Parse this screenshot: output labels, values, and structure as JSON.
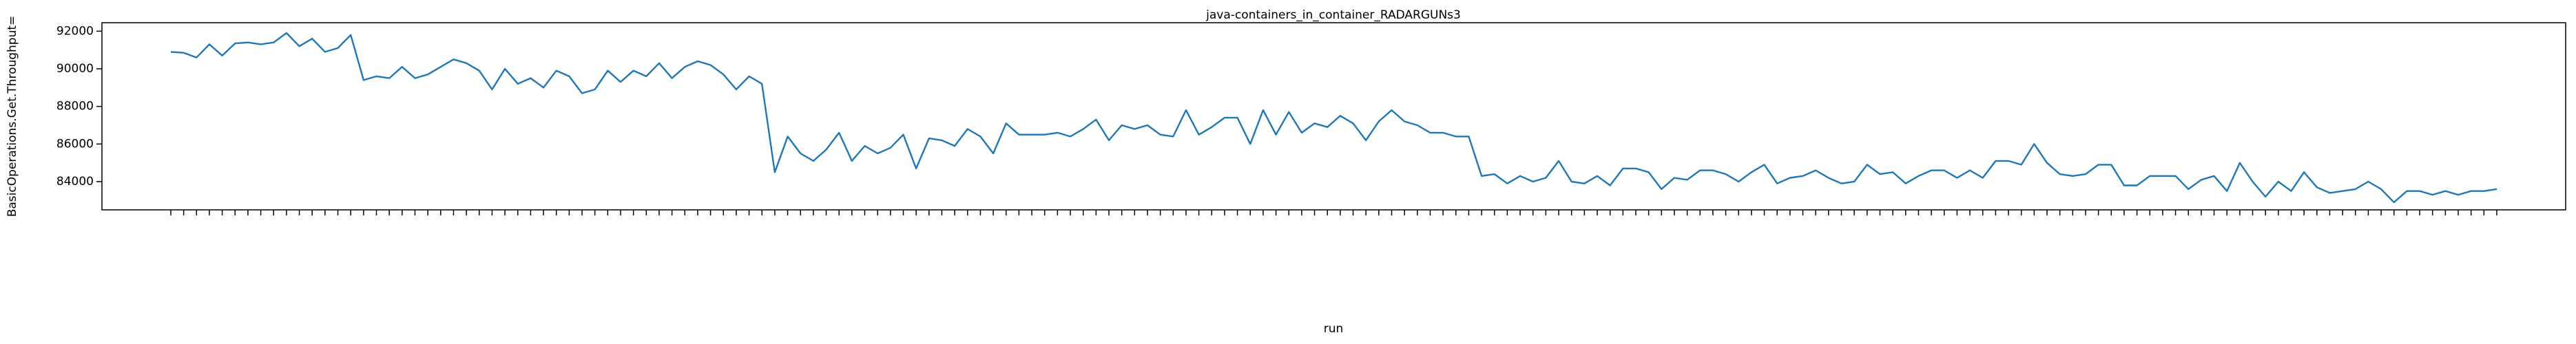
{
  "chart_data": {
    "type": "line",
    "title": "java-containers_in_container_RADARGUNs3",
    "xlabel": "run",
    "ylabel": "BasicOperations.Get.Throughput=",
    "categories": [
      null,
      null,
      null,
      null,
      null,
      null,
      null,
      null,
      null,
      null,
      null,
      null,
      null,
      null,
      null,
      null,
      null,
      null,
      null,
      null,
      null,
      null,
      null,
      null,
      null,
      null,
      null,
      null,
      null,
      null,
      null,
      null,
      null,
      null,
      null,
      null,
      null,
      null,
      null,
      null,
      null,
      null,
      null,
      null,
      null,
      null,
      null,
      null,
      null,
      null,
      null,
      null,
      null,
      null,
      null,
      null,
      null,
      null,
      null,
      null,
      null,
      null,
      null,
      null,
      null,
      null,
      null,
      null,
      null,
      null,
      null,
      null,
      null,
      null,
      null,
      null,
      null,
      null,
      null,
      null,
      null,
      null,
      null,
      null,
      null,
      null,
      null,
      null,
      null,
      null,
      null,
      null,
      null,
      null,
      null,
      null,
      null,
      null,
      null,
      null,
      null,
      null,
      null,
      null,
      null,
      null,
      null,
      null,
      null,
      null,
      null,
      null,
      null,
      null,
      null,
      null,
      null,
      null,
      null,
      null,
      null,
      null,
      null,
      null,
      null,
      null,
      null,
      null,
      null,
      null,
      null,
      null,
      null,
      null,
      null,
      null,
      null,
      null,
      null,
      null,
      null,
      null,
      null,
      null,
      null,
      null,
      null,
      null,
      null,
      null,
      null,
      null,
      null,
      null,
      null,
      null,
      null,
      null,
      null,
      null,
      null,
      null,
      null,
      null,
      null,
      null,
      null,
      null,
      null,
      null,
      null,
      null,
      null,
      null,
      null,
      null,
      null,
      null,
      null,
      null,
      null,
      null
    ],
    "series": [
      {
        "name": "BasicOperations.Get.Throughput",
        "color": "#1f77b4",
        "values": [
          90900,
          90850,
          90600,
          91300,
          90700,
          91350,
          91400,
          91300,
          91400,
          91900,
          91200,
          91600,
          90900,
          91100,
          91800,
          89400,
          89600,
          89500,
          90100,
          89500,
          89700,
          90100,
          90500,
          90300,
          89900,
          88900,
          90000,
          89200,
          89500,
          89000,
          89900,
          89600,
          88700,
          88900,
          89900,
          89300,
          89900,
          89600,
          90300,
          89500,
          90100,
          90400,
          90200,
          89700,
          88900,
          89600,
          89200,
          84500,
          86400,
          85500,
          85100,
          85700,
          86600,
          85100,
          85900,
          85500,
          85800,
          86500,
          84700,
          86300,
          86200,
          85900,
          86800,
          86400,
          85500,
          87100,
          86500,
          86500,
          86500,
          86600,
          86400,
          86800,
          87300,
          86200,
          87000,
          86800,
          87000,
          86500,
          86400,
          87800,
          86500,
          86900,
          87400,
          87400,
          86000,
          87800,
          86500,
          87700,
          86600,
          87100,
          86900,
          87500,
          87100,
          86200,
          87200,
          87800,
          87200,
          87000,
          86600,
          86600,
          86400,
          86400,
          84300,
          84400,
          83900,
          84300,
          84000,
          84200,
          85100,
          84000,
          83900,
          84300,
          83800,
          84700,
          84700,
          84500,
          83600,
          84200,
          84100,
          84600,
          84600,
          84400,
          84000,
          84500,
          84900,
          83900,
          84200,
          84300,
          84600,
          84200,
          83900,
          84000,
          84900,
          84400,
          84500,
          83900,
          84300,
          84600,
          84600,
          84200,
          84600,
          84200,
          85100,
          85100,
          84900,
          86000,
          85000,
          84400,
          84300,
          84400,
          84900,
          84900,
          83800,
          83800,
          84300,
          84300,
          84300,
          83600,
          84100,
          84300,
          83500,
          85000,
          84000,
          83200,
          84000,
          83500,
          84500,
          83700,
          83400,
          83500,
          83600,
          84000,
          83600,
          82900,
          83500,
          83500,
          83300,
          83500,
          83300,
          83500,
          83500,
          83600
        ]
      }
    ],
    "ylim": [
      82500,
      92450
    ],
    "yticks": [
      84000,
      86000,
      88000,
      90000,
      92000
    ],
    "grid": false
  }
}
